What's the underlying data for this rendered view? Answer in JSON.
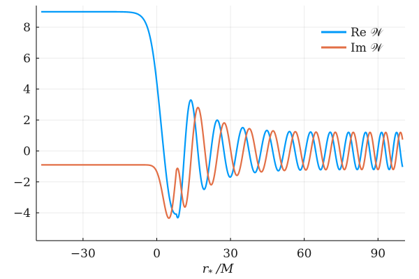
{
  "chart_data": {
    "type": "line",
    "title": "",
    "xlabel": "r* /M",
    "ylabel": "",
    "xlim": [
      -49,
      101
    ],
    "ylim": [
      -5.8,
      9.4
    ],
    "xticks": [
      -30,
      0,
      30,
      60,
      90
    ],
    "yticks": [
      -4,
      -2,
      0,
      2,
      4,
      6,
      8
    ],
    "xtick_labels": [
      "−30",
      "0",
      "30",
      "60",
      "90"
    ],
    "ytick_labels": [
      "−4",
      "−2",
      "0",
      "2",
      "4",
      "6",
      "8"
    ],
    "grid": true,
    "legend_position": "top-right",
    "x_range": [
      -47,
      100
    ],
    "series": [
      {
        "name": "Re 𝒲",
        "color": "#009af9",
        "description": "plateau at 9.0 for r*/M < -10, drops sharply through 0 near r*/M ≈ 3, first minimum ≈ -4.3 near 10, then oscillates with decaying amplitude to about ±1.2 by r*/M = 100",
        "key_points": [
          [
            -47,
            9.0
          ],
          [
            -10,
            9.0
          ],
          [
            -5,
            8.6
          ],
          [
            0,
            6.5
          ],
          [
            3,
            0.5
          ],
          [
            6,
            -3.0
          ],
          [
            10,
            -4.3
          ],
          [
            15,
            3.5
          ],
          [
            30,
            2.0
          ],
          [
            60,
            1.5
          ],
          [
            100,
            1.2
          ]
        ]
      },
      {
        "name": "Im 𝒲",
        "color": "#e26f46",
        "description": "plateau at -0.9 for r*/M < -10, dips to minimum ≈ -5.5 near r*/M ≈ 5, then oscillates with decaying amplitude to about ±1.2 by r*/M = 100",
        "key_points": [
          [
            -47,
            -0.9
          ],
          [
            -10,
            -0.92
          ],
          [
            -3,
            -1.6
          ],
          [
            2,
            -3.5
          ],
          [
            5,
            -5.5
          ],
          [
            8,
            -4.0
          ],
          [
            12,
            3.8
          ],
          [
            30,
            2.0
          ],
          [
            60,
            1.5
          ],
          [
            100,
            1.2
          ]
        ]
      }
    ]
  }
}
